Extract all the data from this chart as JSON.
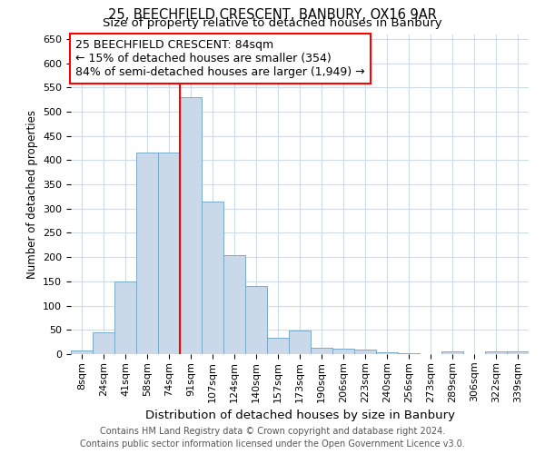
{
  "title1": "25, BEECHFIELD CRESCENT, BANBURY, OX16 9AR",
  "title2": "Size of property relative to detached houses in Banbury",
  "xlabel": "Distribution of detached houses by size in Banbury",
  "ylabel": "Number of detached properties",
  "categories": [
    "8sqm",
    "24sqm",
    "41sqm",
    "58sqm",
    "74sqm",
    "91sqm",
    "107sqm",
    "124sqm",
    "140sqm",
    "157sqm",
    "173sqm",
    "190sqm",
    "206sqm",
    "223sqm",
    "240sqm",
    "256sqm",
    "273sqm",
    "289sqm",
    "306sqm",
    "322sqm",
    "339sqm"
  ],
  "values": [
    7,
    45,
    150,
    415,
    415,
    530,
    315,
    205,
    140,
    33,
    48,
    14,
    12,
    9,
    4,
    2,
    0,
    5,
    0,
    6,
    6
  ],
  "bar_color": "#c9d9ea",
  "bar_edge_color": "#7aaac8",
  "annotation_title": "25 BEECHFIELD CRESCENT: 84sqm",
  "annotation_line1": "← 15% of detached houses are smaller (354)",
  "annotation_line2": "84% of semi-detached houses are larger (1,949) →",
  "ylim": [
    0,
    660
  ],
  "yticks": [
    0,
    50,
    100,
    150,
    200,
    250,
    300,
    350,
    400,
    450,
    500,
    550,
    600,
    650
  ],
  "footer1": "Contains HM Land Registry data © Crown copyright and database right 2024.",
  "footer2": "Contains public sector information licensed under the Open Government Licence v3.0.",
  "bg_color": "#ffffff",
  "grid_color": "#ccdcea",
  "title1_fontsize": 10.5,
  "title2_fontsize": 9.5,
  "xlabel_fontsize": 9.5,
  "ylabel_fontsize": 8.5,
  "tick_fontsize": 8,
  "annot_fontsize": 9,
  "footer_fontsize": 7
}
